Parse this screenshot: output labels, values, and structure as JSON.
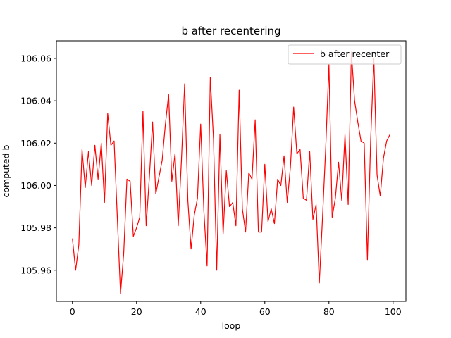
{
  "chart_data": {
    "type": "line",
    "title": "b after recentering",
    "xlabel": "loop",
    "ylabel": "computed b",
    "xlim": [
      -5,
      104
    ],
    "ylim": [
      105.9453,
      106.0683
    ],
    "xticks": [
      0,
      20,
      40,
      60,
      80,
      100
    ],
    "yticks": [
      105.96,
      105.98,
      106.0,
      106.02,
      106.04,
      106.06
    ],
    "grid": false,
    "legend_position": "top-right",
    "series": [
      {
        "name": "b after recenter",
        "color": "#ff0000",
        "x": [
          0,
          1,
          2,
          3,
          4,
          5,
          6,
          7,
          8,
          9,
          10,
          11,
          12,
          13,
          14,
          15,
          16,
          17,
          18,
          19,
          20,
          21,
          22,
          23,
          24,
          25,
          26,
          27,
          28,
          29,
          30,
          31,
          32,
          33,
          34,
          35,
          36,
          37,
          38,
          39,
          40,
          41,
          42,
          43,
          44,
          45,
          46,
          47,
          48,
          49,
          50,
          51,
          52,
          53,
          54,
          55,
          56,
          57,
          58,
          59,
          60,
          61,
          62,
          63,
          64,
          65,
          66,
          67,
          68,
          69,
          70,
          71,
          72,
          73,
          74,
          75,
          76,
          77,
          78,
          79,
          80,
          81,
          82,
          83,
          84,
          85,
          86,
          87,
          88,
          89,
          90,
          91,
          92,
          93,
          94,
          95,
          96,
          97,
          98,
          99
        ],
        "y": [
          105.975,
          105.96,
          105.972,
          106.017,
          105.999,
          106.016,
          106.0,
          106.019,
          106.003,
          106.02,
          105.992,
          106.034,
          106.019,
          106.021,
          105.985,
          105.949,
          105.968,
          106.003,
          106.002,
          105.976,
          105.98,
          105.985,
          106.035,
          105.981,
          106.004,
          106.03,
          105.996,
          106.004,
          106.012,
          106.029,
          106.043,
          106.002,
          106.015,
          105.981,
          106.012,
          106.048,
          105.993,
          105.97,
          105.986,
          105.994,
          106.029,
          105.988,
          105.962,
          106.051,
          106.022,
          105.96,
          106.024,
          105.977,
          106.007,
          105.99,
          105.992,
          105.981,
          106.045,
          105.989,
          105.978,
          106.006,
          106.003,
          106.031,
          105.978,
          105.978,
          106.01,
          105.983,
          105.989,
          105.982,
          106.003,
          106.0,
          106.014,
          105.992,
          106.009,
          106.037,
          106.015,
          106.017,
          105.994,
          105.993,
          106.016,
          105.984,
          105.991,
          105.954,
          105.985,
          106.018,
          106.057,
          105.985,
          105.994,
          106.011,
          105.993,
          106.024,
          105.991,
          106.063,
          106.04,
          106.03,
          106.021,
          106.02,
          105.965,
          106.021,
          106.06,
          106.005,
          105.995,
          106.013,
          106.021,
          106.024
        ]
      }
    ]
  }
}
